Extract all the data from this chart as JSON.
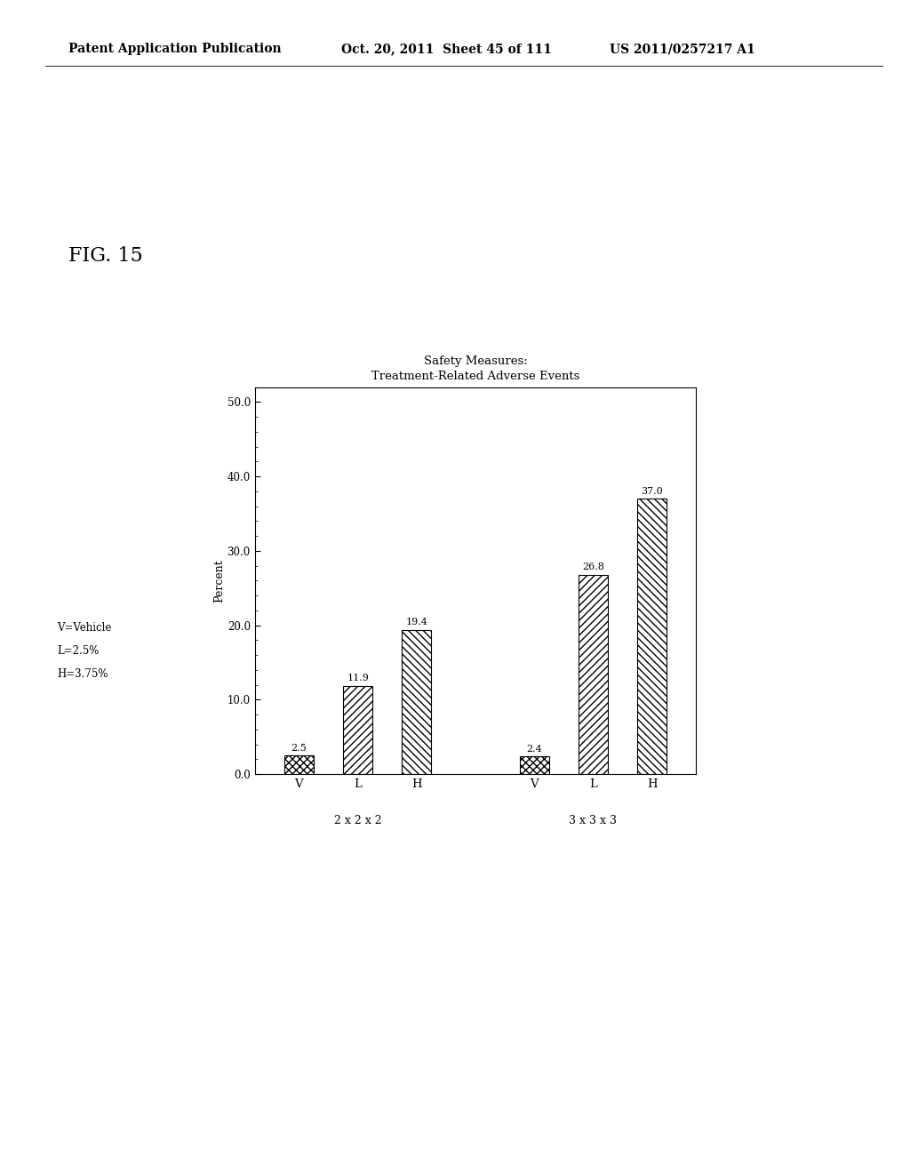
{
  "title_line1": "Safety Measures:",
  "title_line2": "Treatment-Related Adverse Events",
  "groups": [
    "2 x 2 x 2",
    "3 x 3 x 3"
  ],
  "bar_labels": [
    "V",
    "L",
    "H"
  ],
  "values_g1": [
    2.5,
    11.9,
    19.4
  ],
  "values_g2": [
    2.4,
    26.8,
    37.0
  ],
  "ylabel": "Percent",
  "ylim_max": 52,
  "yticks": [
    0.0,
    10.0,
    20.0,
    30.0,
    40.0,
    50.0
  ],
  "ytick_labels": [
    "0.0",
    "10.0",
    "20.0",
    "30.0",
    "40.0",
    "50.0"
  ],
  "legend_text": [
    "V=Vehicle",
    "L=2.5%",
    "H=3.75%"
  ],
  "header_left": "Patent Application Publication",
  "header_mid": "Oct. 20, 2011  Sheet 45 of 111",
  "header_right": "US 2011/0257217 A1",
  "fig_label": "FIG. 15",
  "background_color": "#ffffff",
  "hatch_V": "xxxx",
  "hatch_L": "////",
  "hatch_H": "\\\\\\\\"
}
